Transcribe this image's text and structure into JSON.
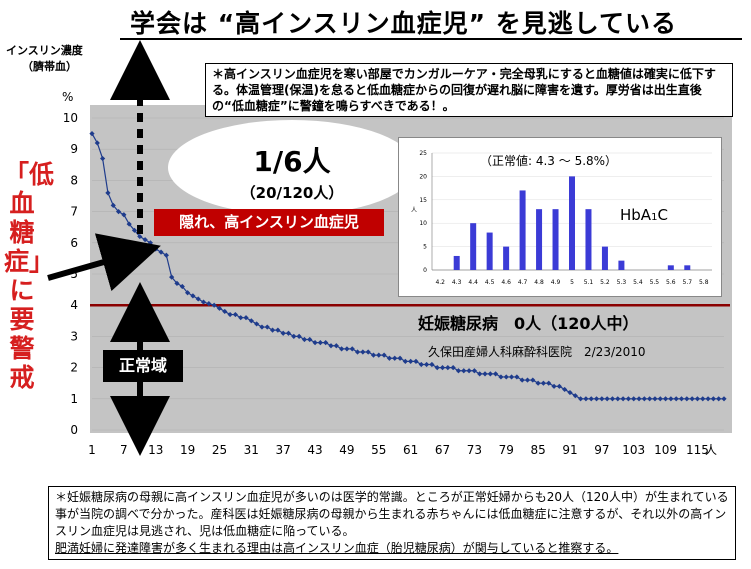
{
  "title": "学会は “高インスリン血症児” を見逃している",
  "y_header": {
    "line1": "インスリン濃度",
    "line2": "（臍帯血）"
  },
  "y_unit": "%",
  "x_unit": "人",
  "top_note": "＊高インスリン血症児を寒い部屋でカンガルーケア・完全母乳にすると血糖値は確実に低下する。体温管理(保温)を怠ると低血糖症からの回復が遅れ脳に障害を遺す。厚労省は出生直後の“低血糖症”に警鐘を鳴らすべきである！。",
  "side_warning": "「低血糖症」に要警戒",
  "ratio": {
    "main": "1/6人",
    "sub": "（20/120人）"
  },
  "hidden_label": "隠れ、高インスリン血症児",
  "normal_label": "正常域",
  "pregnancy_label": "妊娠糖尿病　0人（120人中）",
  "clinic_label": "久保田産婦人科麻酔科医院　2/23/2010",
  "inset": {
    "note": "（正常値: 4.3 ～ 5.8%）",
    "label": "HbA1C",
    "ylabel": "人"
  },
  "bottom_note": {
    "text": "＊妊娠糖尿病の母親に高インスリン血症児が多いのは医学的常識。ところが正常妊婦からも20人（120人中）が生まれている事が当院の調べで分かった。産科医は妊娠糖尿病の母親から生まれる赤ちゃんには低血糖症に注意するが、それ以外の高インスリン血症児は見逃され、児は低血糖症に陥っている。",
    "underlined": "肥満妊婦に発達障害が多く生まれる理由は高インスリン血症（胎児糖尿病）が関与していると推察する。"
  },
  "colors": {
    "plot_bg": "#c4c4c4",
    "series": "#1f3c8c",
    "threshold_line": "#8b0000",
    "warning_red": "#d61f1f",
    "hidden_box": "#c00000",
    "inset_bar": "#3b3bd6"
  },
  "chart_data": [
    {
      "type": "line",
      "xlabel": "人",
      "ylabel": "インスリン濃度（臍帯血）",
      "y_unit": "%",
      "ylim": [
        0,
        10
      ],
      "yticks": [
        "0",
        "1",
        "2",
        "3",
        "4",
        "5",
        "6",
        "7",
        "8",
        "9",
        "10"
      ],
      "xlim": [
        1,
        120
      ],
      "xticks": [
        "1",
        "7",
        "13",
        "19",
        "25",
        "31",
        "37",
        "43",
        "49",
        "55",
        "61",
        "67",
        "73",
        "79",
        "85",
        "91",
        "97",
        "103",
        "109",
        "115"
      ],
      "threshold": 4,
      "y": [
        9.5,
        9.2,
        8.7,
        7.6,
        7.2,
        7.0,
        6.9,
        6.6,
        6.4,
        6.2,
        6.1,
        6.0,
        5.8,
        5.7,
        5.6,
        4.9,
        4.7,
        4.6,
        4.4,
        4.3,
        4.2,
        4.1,
        4.05,
        4.0,
        3.9,
        3.8,
        3.7,
        3.7,
        3.6,
        3.6,
        3.5,
        3.4,
        3.3,
        3.3,
        3.2,
        3.2,
        3.1,
        3.1,
        3.0,
        3.0,
        2.9,
        2.9,
        2.8,
        2.8,
        2.8,
        2.7,
        2.7,
        2.6,
        2.6,
        2.6,
        2.5,
        2.5,
        2.5,
        2.4,
        2.4,
        2.4,
        2.3,
        2.3,
        2.3,
        2.2,
        2.2,
        2.2,
        2.1,
        2.1,
        2.1,
        2.0,
        2.0,
        2.0,
        2.0,
        1.9,
        1.9,
        1.9,
        1.9,
        1.8,
        1.8,
        1.8,
        1.8,
        1.7,
        1.7,
        1.7,
        1.7,
        1.6,
        1.6,
        1.6,
        1.5,
        1.5,
        1.5,
        1.4,
        1.4,
        1.3,
        1.2,
        1.1,
        1.0,
        1.0,
        1.0,
        1.0,
        1.0,
        1.0,
        1.0,
        1.0,
        1.0,
        1.0,
        1.0,
        1.0,
        1.0,
        1.0,
        1.0,
        1.0,
        1.0,
        1.0,
        1.0,
        1.0,
        1.0,
        1.0,
        1.0,
        1.0,
        1.0,
        1.0,
        1.0,
        1.0
      ]
    },
    {
      "type": "bar",
      "title": "HbA1C",
      "ylabel": "人",
      "ylim": [
        0,
        25
      ],
      "yticks": [
        "0",
        "5",
        "10",
        "15",
        "20",
        "25"
      ],
      "categories": [
        "4.2",
        "4.3",
        "4.4",
        "4.5",
        "4.6",
        "4.7",
        "4.8",
        "4.9",
        "5",
        "5.1",
        "5.2",
        "5.3",
        "5.4",
        "5.5",
        "5.6",
        "5.7",
        "5.8"
      ],
      "values": [
        0,
        3,
        10,
        8,
        5,
        17,
        13,
        13,
        20,
        13,
        5,
        2,
        0,
        0,
        1,
        1,
        0
      ]
    }
  ]
}
